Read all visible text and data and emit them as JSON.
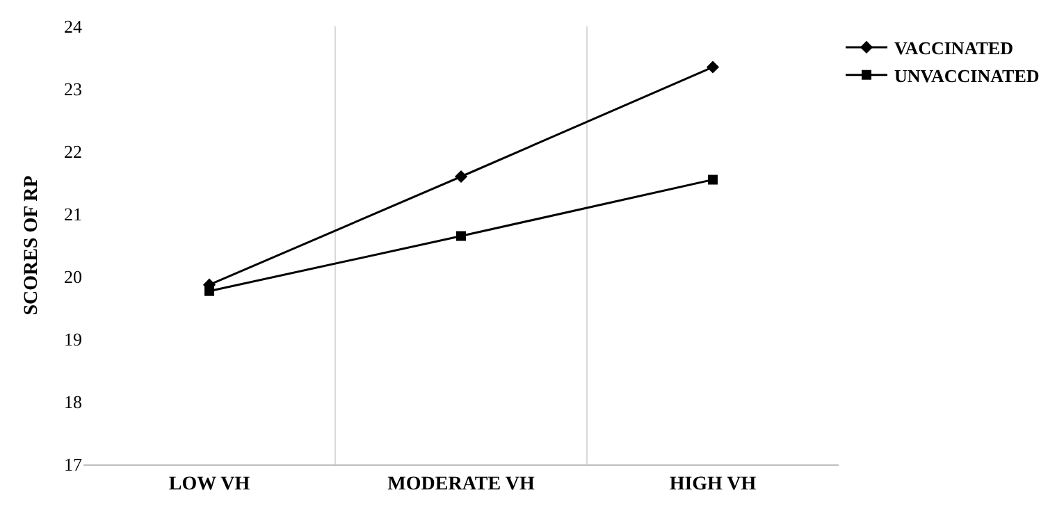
{
  "chart_data": {
    "type": "line",
    "ylabel": "SCORES OF RP",
    "categories": [
      "LOW VH",
      "MODERATE VH",
      "HIGH VH"
    ],
    "series": [
      {
        "name": "VACCINATED",
        "color": "#000000",
        "marker": "diamond",
        "values": [
          19.87,
          21.6,
          23.35
        ]
      },
      {
        "name": "UNVACCINATED",
        "color": "#000000",
        "marker": "square",
        "values": [
          19.77,
          20.65,
          21.55
        ]
      }
    ],
    "ylim": [
      17,
      24
    ],
    "yticks": [
      17,
      18,
      19,
      20,
      21,
      22,
      23,
      24
    ],
    "grid": "x",
    "legend": "top right",
    "line_style": "solid"
  }
}
